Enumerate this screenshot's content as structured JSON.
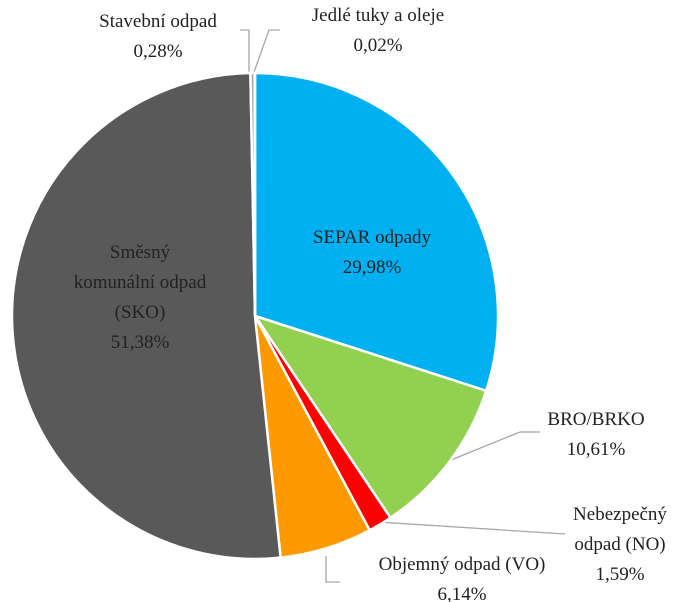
{
  "chart_data": {
    "type": "pie",
    "categories": [
      "SEPAR odpady",
      "BRO/BRKO",
      "Nebezpečný odpad (NO)",
      "Objemný odpad (VO)",
      "Směsný komunální odpad (SKO)",
      "Stavební odpad",
      "Jedlé tuky a oleje"
    ],
    "values": [
      29.98,
      10.61,
      1.59,
      6.14,
      51.38,
      0.28,
      0.02
    ],
    "value_labels": [
      "29,98%",
      "10,61%",
      "1,59%",
      "6,14%",
      "51,38%",
      "0,28%",
      "0,02%"
    ],
    "colors": [
      "#00b0f0",
      "#92d050",
      "#ff0000",
      "#ff9900",
      "#595959",
      "#a6a6a6",
      "#ffc000"
    ]
  }
}
